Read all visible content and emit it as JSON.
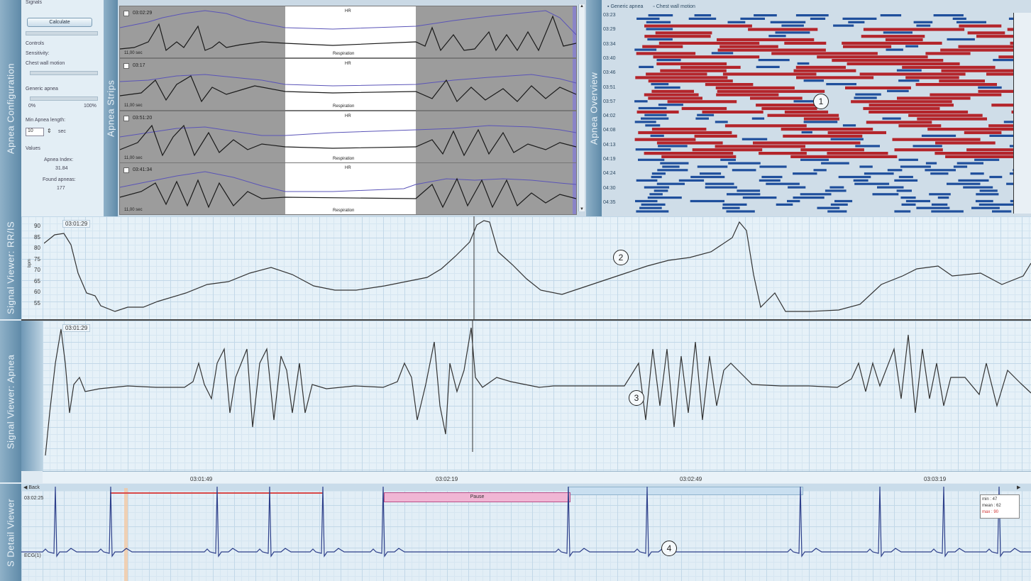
{
  "tabs": {
    "apnea_config": "Apnea Configuration",
    "apnea_strips": "Apnea Strips",
    "apnea_overview": "Apnea Overview",
    "signal_rr": "Signal Viewer: RR/IS",
    "signal_apnea": "Signal Viewer: Apnea",
    "detail_viewer": "S Detail Viewer"
  },
  "config": {
    "signals_label": "Signals",
    "calculate_button": "Calculate",
    "controls_label": "Controls",
    "sensitivity_label": "Sensitivity:",
    "chest_wall_label": "Chest wall motion",
    "generic_apnea_label": "Generic apnea",
    "pct_min": "0%",
    "pct_max": "100%",
    "min_length_label": "Min Apnea length:",
    "min_length_value": "10",
    "min_length_unit": "sec",
    "values_label": "Values",
    "apnea_index_label": "Apnea Index:",
    "apnea_index_value": "31.84",
    "found_apneas_label": "Found apneas:",
    "found_apneas_value": "177"
  },
  "strips": [
    {
      "time": "03:02:29",
      "checked": true,
      "duration": "11,00 sec",
      "hr": "HR",
      "resp": "Respiration"
    },
    {
      "time": "03:17",
      "checked": false,
      "duration": "11,00 sec",
      "hr": "HR",
      "resp": "Respiration"
    },
    {
      "time": "03:51:20",
      "checked": false,
      "duration": "11,00 sec",
      "hr": "HR",
      "resp": "Respiration"
    },
    {
      "time": "03:41:34",
      "checked": false,
      "duration": "11,00 sec",
      "hr": "HR",
      "resp": "Respiration"
    }
  ],
  "overview": {
    "legend_generic": "Generic apnea",
    "legend_chest": "Chest wall motion",
    "times": [
      "03:23",
      "03:29",
      "03:34",
      "03:40",
      "03:46",
      "03:51",
      "03:57",
      "04:02",
      "04:08",
      "04:13",
      "04:19",
      "04:24",
      "04:30",
      "04:35"
    ],
    "colors": {
      "generic": "#b4252b",
      "chest": "#1f4f9c"
    }
  },
  "rr_viewer": {
    "timestamp": "03:01:29",
    "y_ticks": [
      "90",
      "85",
      "80",
      "75",
      "70",
      "65",
      "60",
      "55"
    ],
    "y_unit": "bpm"
  },
  "apnea_viewer": {
    "timestamp": "03:01:29",
    "x_ticks": [
      "03:01:49",
      "03:02:19",
      "03:02:49",
      "03:03:19"
    ]
  },
  "detail_viewer": {
    "nav_back": "◀ Back",
    "time_label": "03:02:25",
    "lead_label": "ECG(1)",
    "pause_label": "Pause",
    "stats": {
      "min": "min : 47",
      "mean": "mean : 62",
      "max": "max : 90"
    }
  },
  "markers": [
    "1",
    "2",
    "3",
    "4"
  ]
}
